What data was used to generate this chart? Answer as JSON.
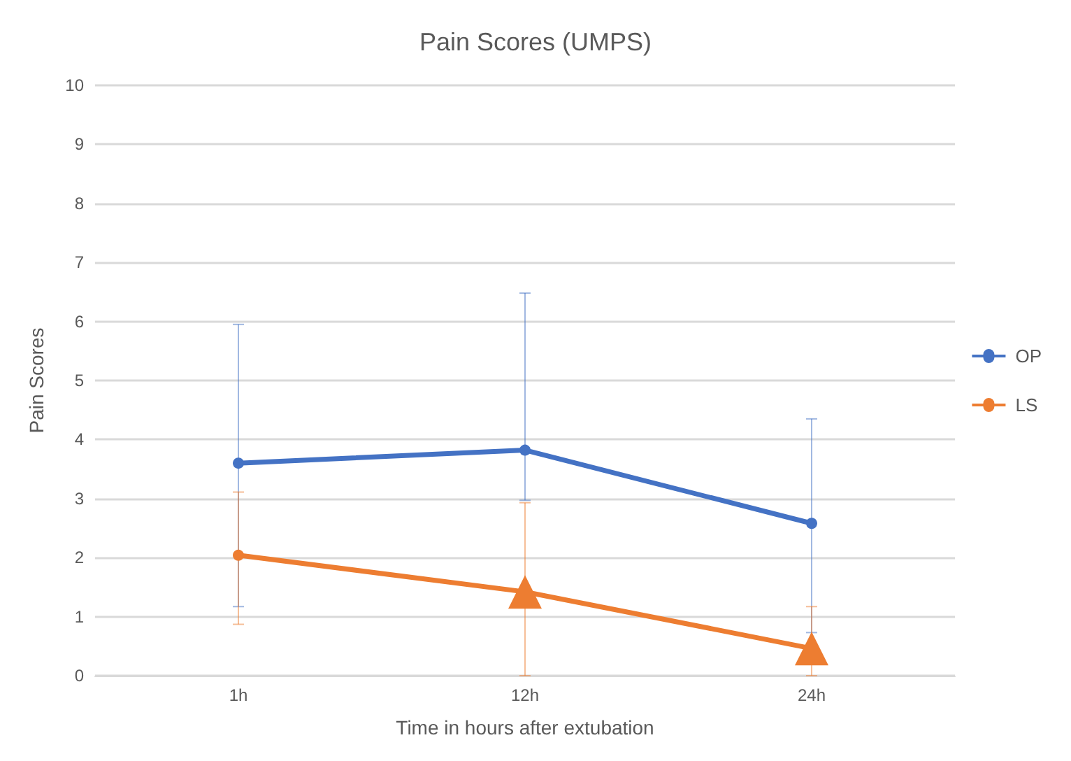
{
  "chart_data": {
    "type": "line",
    "title": "Pain Scores (UMPS)",
    "xlabel": "Time in hours after extubation",
    "ylabel": "Pain Scores",
    "categories": [
      "1h",
      "12h",
      "24h"
    ],
    "series": [
      {
        "name": "OP",
        "color": "#4472c4",
        "values": [
          3.6,
          3.82,
          2.58
        ],
        "errors": [
          [
            1.17,
            5.95
          ],
          [
            2.97,
            6.48
          ],
          [
            0.73,
            4.35
          ]
        ],
        "marker": "circle"
      },
      {
        "name": "LS",
        "color": "#ed7d31",
        "values": [
          2.04,
          1.42,
          0.46
        ],
        "errors": [
          [
            0.87,
            3.11
          ],
          [
            0,
            2.93
          ],
          [
            0,
            1.17
          ]
        ],
        "marker": [
          "circle",
          "triangle",
          "triangle"
        ]
      }
    ],
    "ylim": [
      0,
      10
    ],
    "yticks": [
      0,
      1,
      2,
      3,
      4,
      5,
      6,
      7,
      8,
      9,
      10
    ],
    "grid": "y",
    "legend": "right"
  }
}
